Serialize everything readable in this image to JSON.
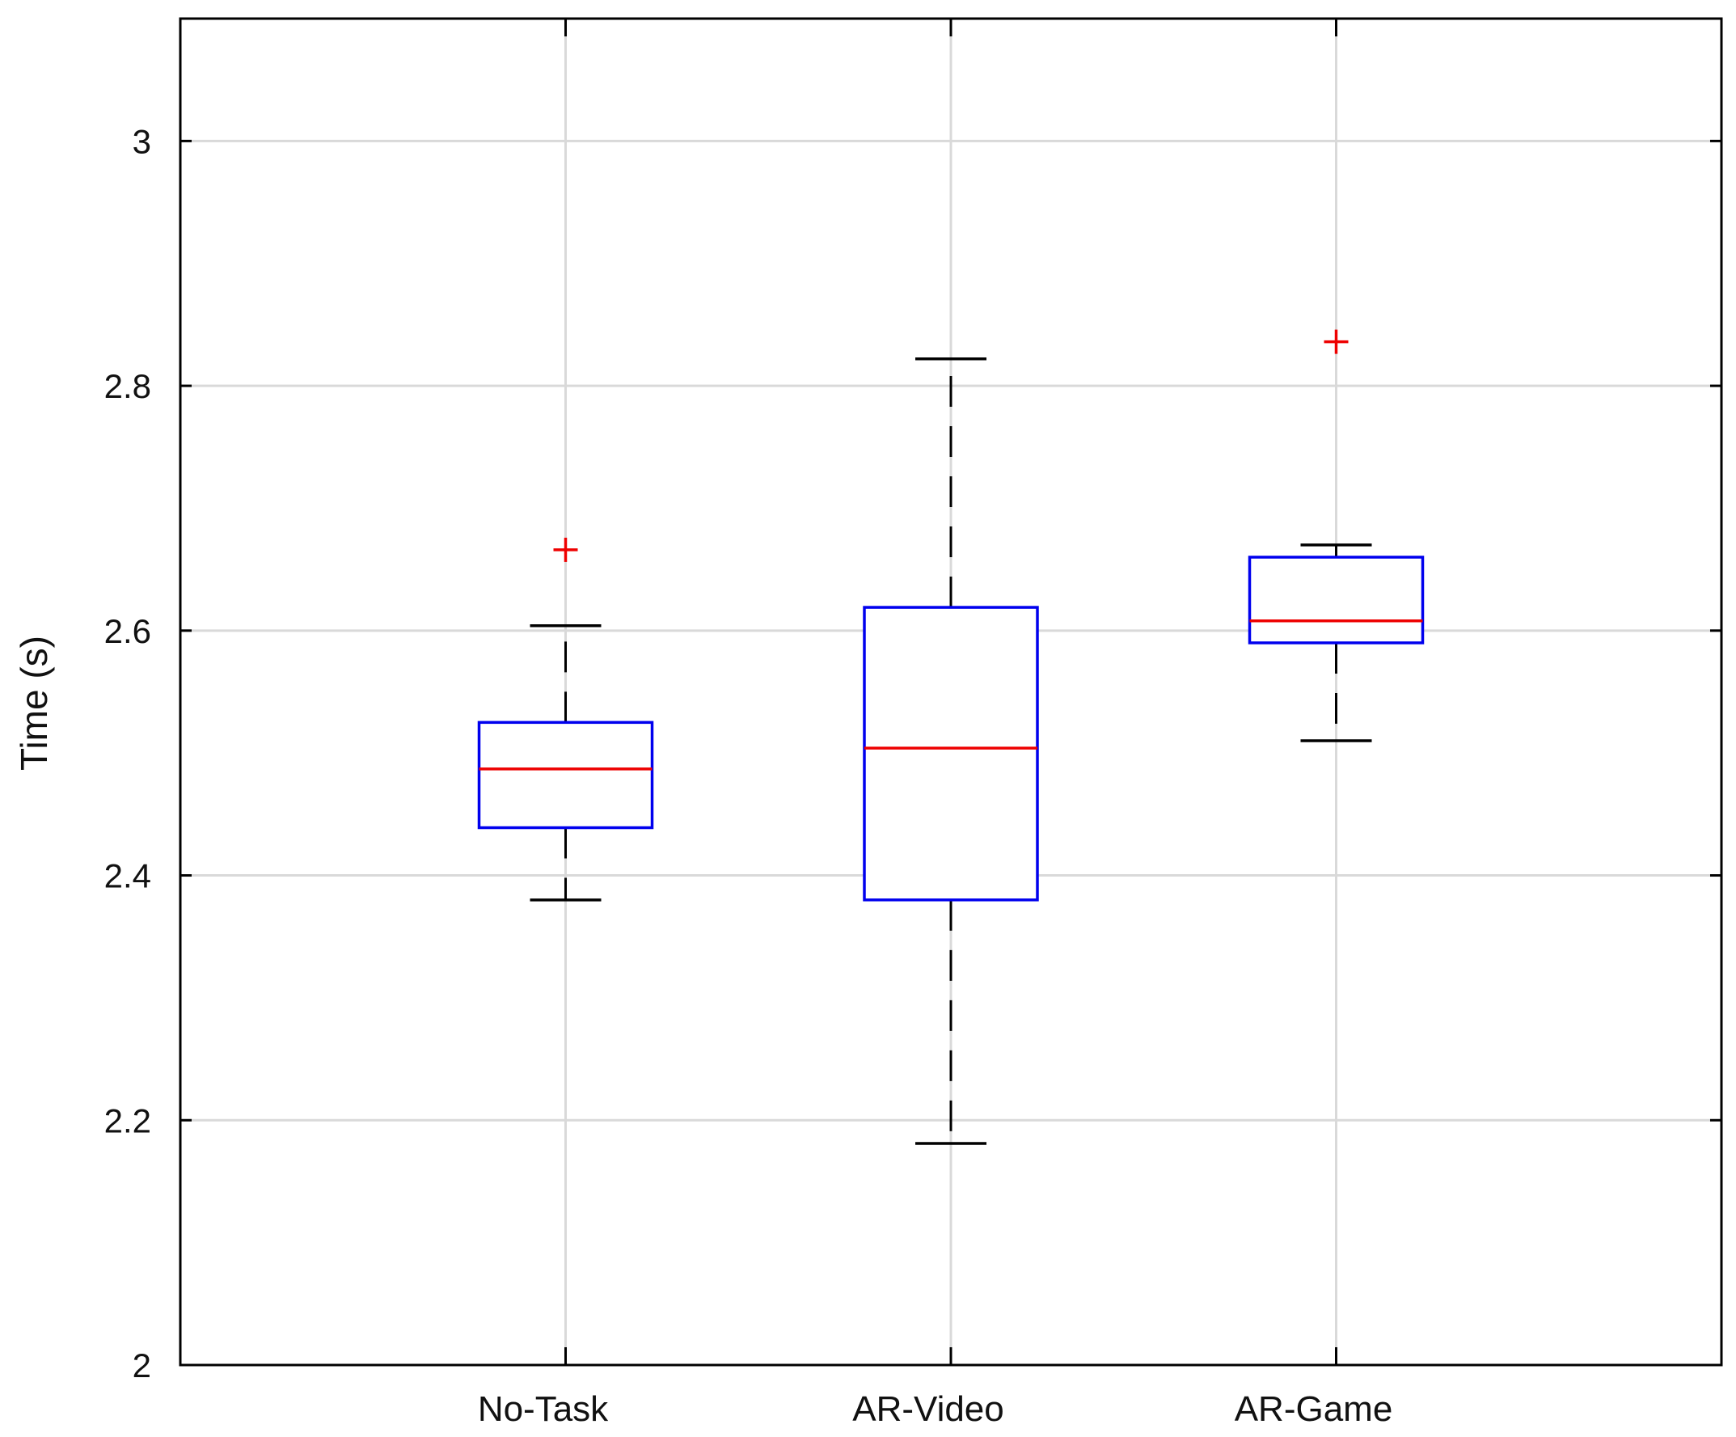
{
  "chart_data": {
    "type": "box",
    "xlabel": "",
    "ylabel": "Time (s)",
    "ylim": [
      2.0,
      3.1
    ],
    "yticks": [
      2,
      2.2,
      2.4,
      2.6,
      2.8,
      3
    ],
    "ytick_labels": [
      "2",
      "2.2",
      "2.4",
      "2.6",
      "2.8",
      "3"
    ],
    "grid": true,
    "categories": [
      "No-Task",
      "AR-Video",
      "AR-Game"
    ],
    "boxes": [
      {
        "category": "No-Task",
        "whisker_low": 2.38,
        "q1": 2.439,
        "median": 2.487,
        "q3": 2.525,
        "whisker_high": 2.604,
        "outliers": [
          2.666
        ]
      },
      {
        "category": "AR-Video",
        "whisker_low": 2.181,
        "q1": 2.38,
        "median": 2.504,
        "q3": 2.619,
        "whisker_high": 2.822,
        "outliers": []
      },
      {
        "category": "AR-Game",
        "whisker_low": 2.51,
        "q1": 2.59,
        "median": 2.608,
        "q3": 2.66,
        "whisker_high": 2.67,
        "outliers": [
          2.836
        ]
      }
    ],
    "colors": {
      "box": "#0000ee",
      "median": "#ee0000",
      "whisker": "#000000",
      "outlier": "#ee0000",
      "grid": "#d9d9d9",
      "axes": "#000000"
    }
  }
}
